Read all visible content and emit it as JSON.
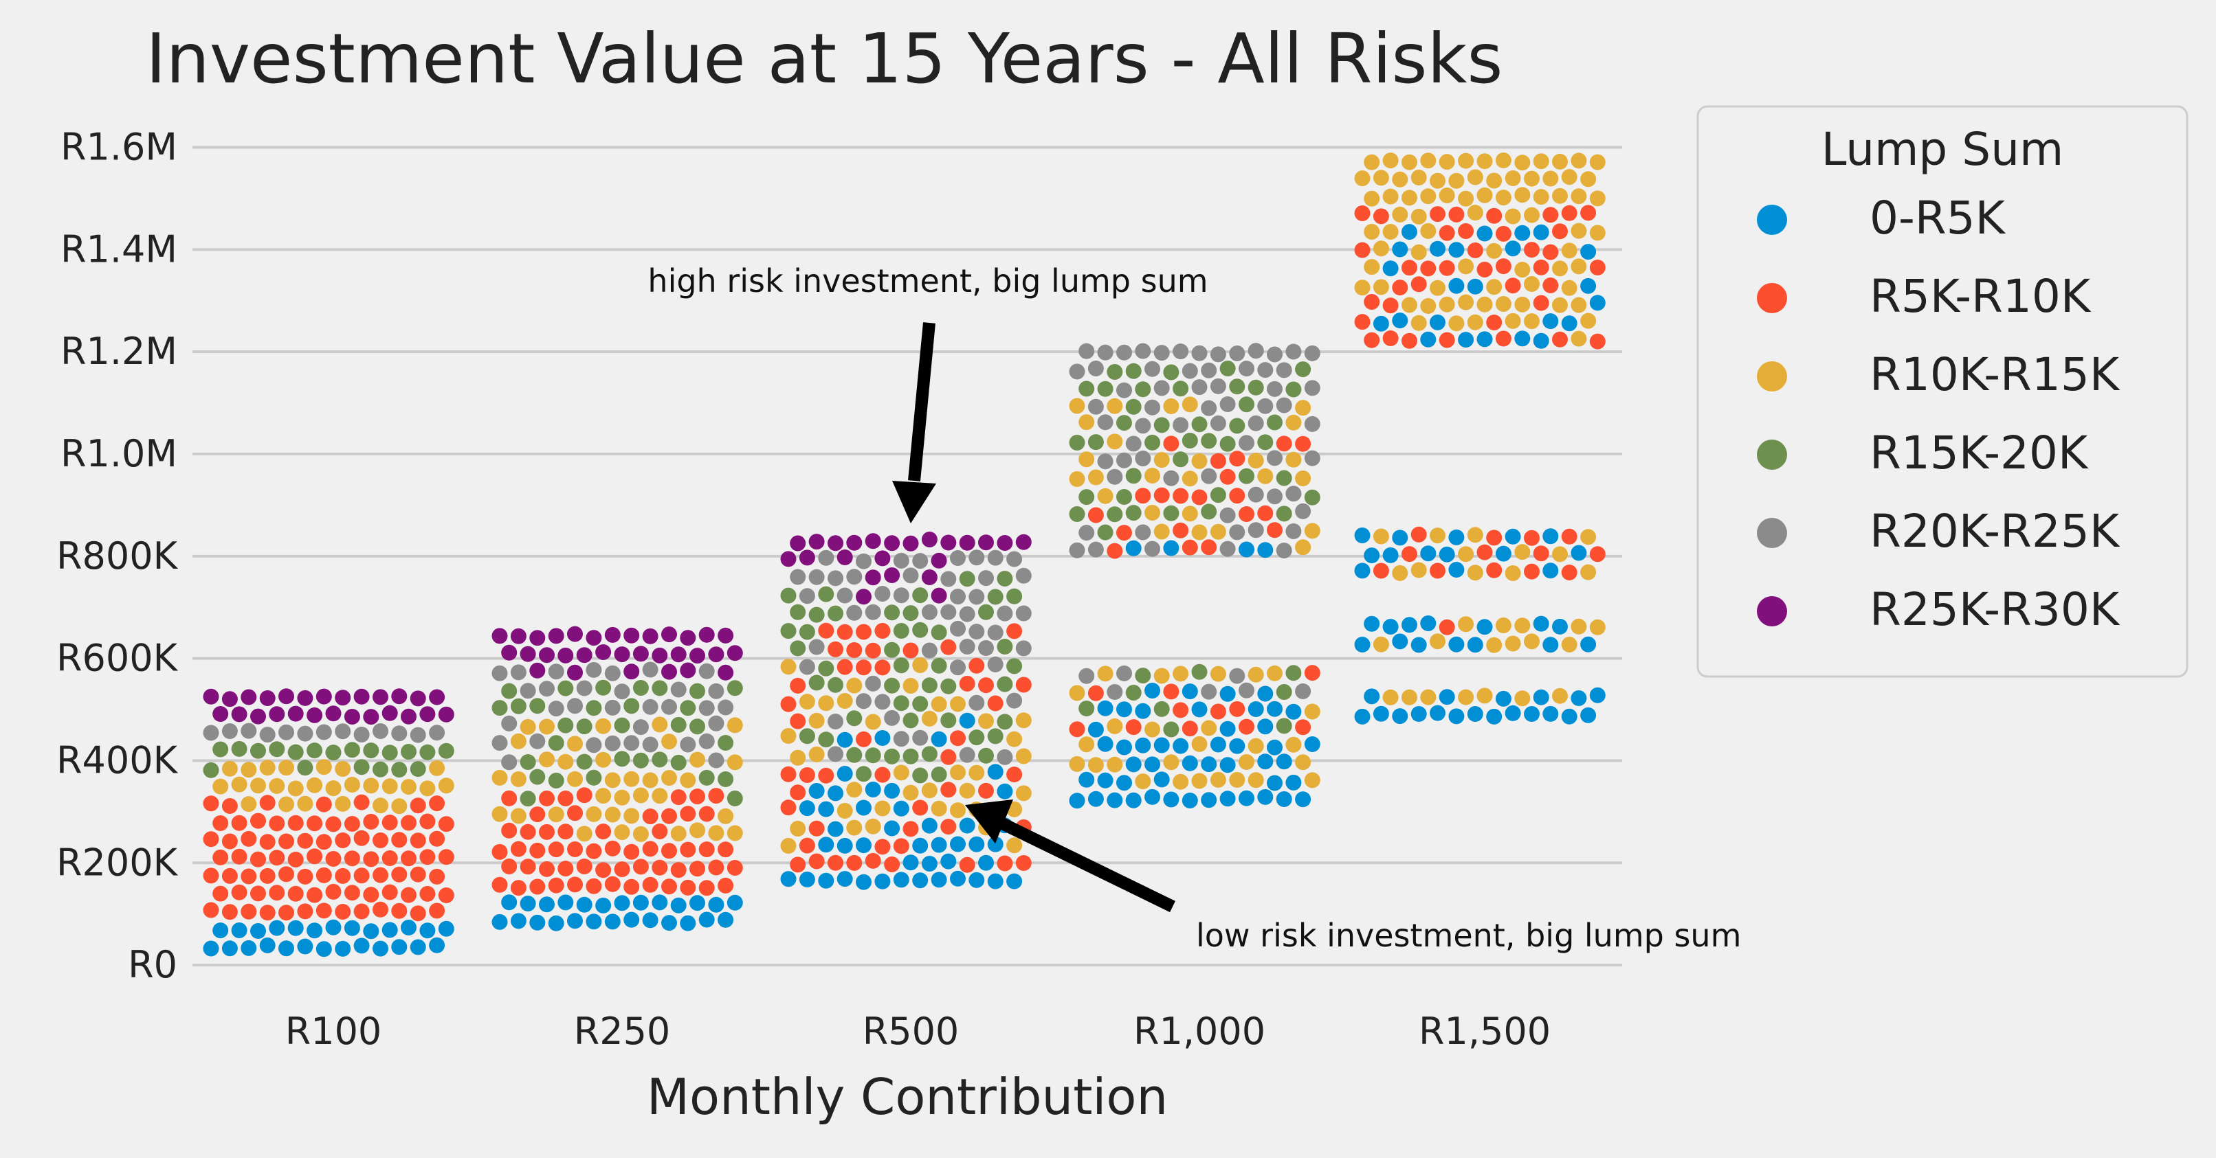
{
  "colors": {
    "background": "#f0f0f0",
    "grid": "#cbcbcb"
  },
  "chart_data": {
    "type": "scatter",
    "subtype": "swarm",
    "title": "Investment Value at 15 Years - All Risks",
    "xlabel": "Monthly Contribution",
    "ylabel": "",
    "categories": [
      "R100",
      "R250",
      "R500",
      "R1,000",
      "R1,500"
    ],
    "y_ticks": [
      {
        "value": 0,
        "label": "R0"
      },
      {
        "value": 200000,
        "label": "R200K"
      },
      {
        "value": 400000,
        "label": "R400K"
      },
      {
        "value": 600000,
        "label": "R600K"
      },
      {
        "value": 800000,
        "label": "R800K"
      },
      {
        "value": 1000000,
        "label": "R1.0M"
      },
      {
        "value": 1200000,
        "label": "R1.2M"
      },
      {
        "value": 1400000,
        "label": "R1.4M"
      },
      {
        "value": 1600000,
        "label": "R1.6M"
      }
    ],
    "ylim": [
      -20000,
      1680000
    ],
    "grid": "horizontal",
    "legend": {
      "title": "Lump Sum",
      "placement": "outside-right",
      "entries": [
        {
          "name": "0-R5K",
          "color": "#008fd5"
        },
        {
          "name": "R5K-R10K",
          "color": "#fc4f30"
        },
        {
          "name": "R10K-R15K",
          "color": "#e5ae38"
        },
        {
          "name": "R15K-20K",
          "color": "#6d904f"
        },
        {
          "name": "R20K-R25K",
          "color": "#8b8b8b"
        },
        {
          "name": "R25K-R30K",
          "color": "#810f7c"
        }
      ]
    },
    "swarm_groups": [
      {
        "category": 0,
        "band": [
          [
            35000,
            85000
          ],
          [
            100000,
            320000
          ],
          [
            300000,
            405000
          ],
          [
            350000,
            440000
          ],
          [
            425000,
            480000
          ],
          [
            460000,
            530000
          ]
        ],
        "order": [
          "0-R5K",
          "R5K-R10K",
          "R10K-R15K",
          "R15K-20K",
          "R20K-R25K",
          "R25K-R30K"
        ]
      },
      {
        "category": 1,
        "band": [
          [
            85000,
            140000
          ],
          [
            140000,
            340000
          ],
          [
            240000,
            480000
          ],
          [
            300000,
            545000
          ],
          [
            380000,
            590000
          ],
          [
            560000,
            665000
          ]
        ]
      },
      {
        "category": 2,
        "band": [
          [
            165000,
            480000
          ],
          [
            190000,
            680000
          ],
          [
            200000,
            590000
          ],
          [
            340000,
            760000
          ],
          [
            380000,
            800000
          ],
          [
            720000,
            850000
          ]
        ]
      },
      {
        "category": 3,
        "band": [
          [
            325000,
            840000
          ],
          [
            440000,
            1030000
          ],
          [
            340000,
            1110000
          ],
          [
            460000,
            1190000
          ],
          [
            520000,
            1210000
          ],
          [
            0,
            0
          ]
        ],
        "clusters": [
          {
            "range": [
              325000,
              575000
            ]
          },
          {
            "range": [
              805000,
              1040000
            ]
          },
          {
            "range": [
              1050000,
              1215000
            ]
          }
        ]
      },
      {
        "category": 4,
        "band": [
          [
            490000,
            1440000
          ],
          [
            655000,
            1500000
          ],
          [
            510000,
            1580000
          ],
          [
            0,
            0
          ],
          [
            0,
            0
          ],
          [
            0,
            0
          ]
        ]
      }
    ],
    "annotations": [
      {
        "text": "high risk investment, big lump sum",
        "target": {
          "category": 2,
          "y": 860000
        },
        "text_pos": "above"
      },
      {
        "text": "low risk investment, big lump sum",
        "target": {
          "category": 2,
          "y": 330000
        },
        "text_pos": "lower-right"
      }
    ]
  }
}
